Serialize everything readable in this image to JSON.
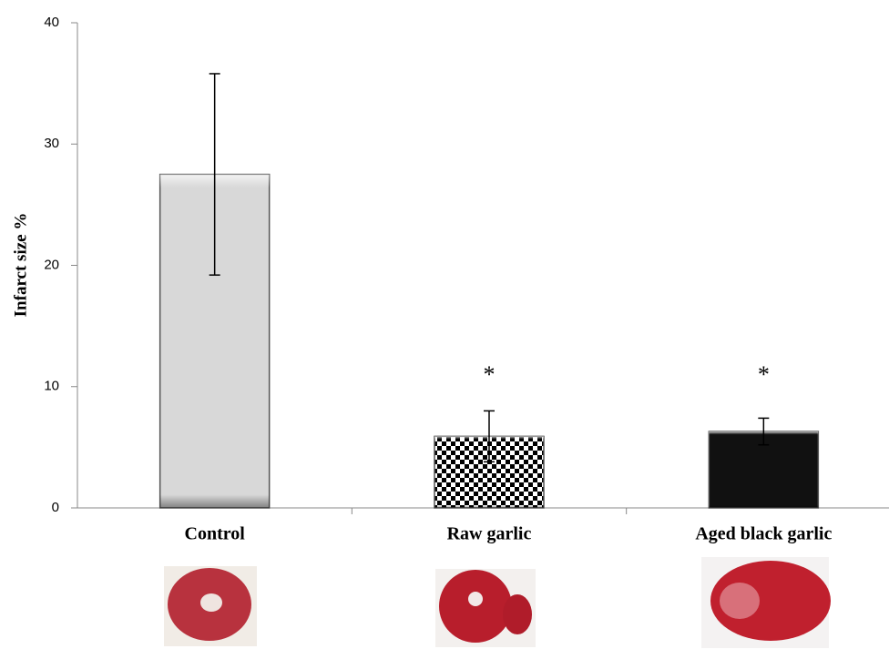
{
  "chart_data": {
    "type": "bar",
    "ylabel": "Infarct size %",
    "categories": [
      "Control",
      "Raw garlic",
      "Aged black garlic"
    ],
    "values": [
      27.5,
      5.9,
      6.3
    ],
    "errors": [
      8.3,
      2.1,
      1.1
    ],
    "colors": [
      "#d8d8d8",
      "#000000",
      "#111111"
    ],
    "patterns": [
      "solid",
      "checkerboard",
      "solid"
    ],
    "annotations": [
      {
        "text": "*",
        "x": "Raw garlic"
      },
      {
        "text": "*",
        "x": "Aged black garlic"
      }
    ],
    "ylim": [
      0,
      40
    ],
    "yticks": [
      0,
      10,
      20,
      30,
      40
    ],
    "grid": false
  }
}
